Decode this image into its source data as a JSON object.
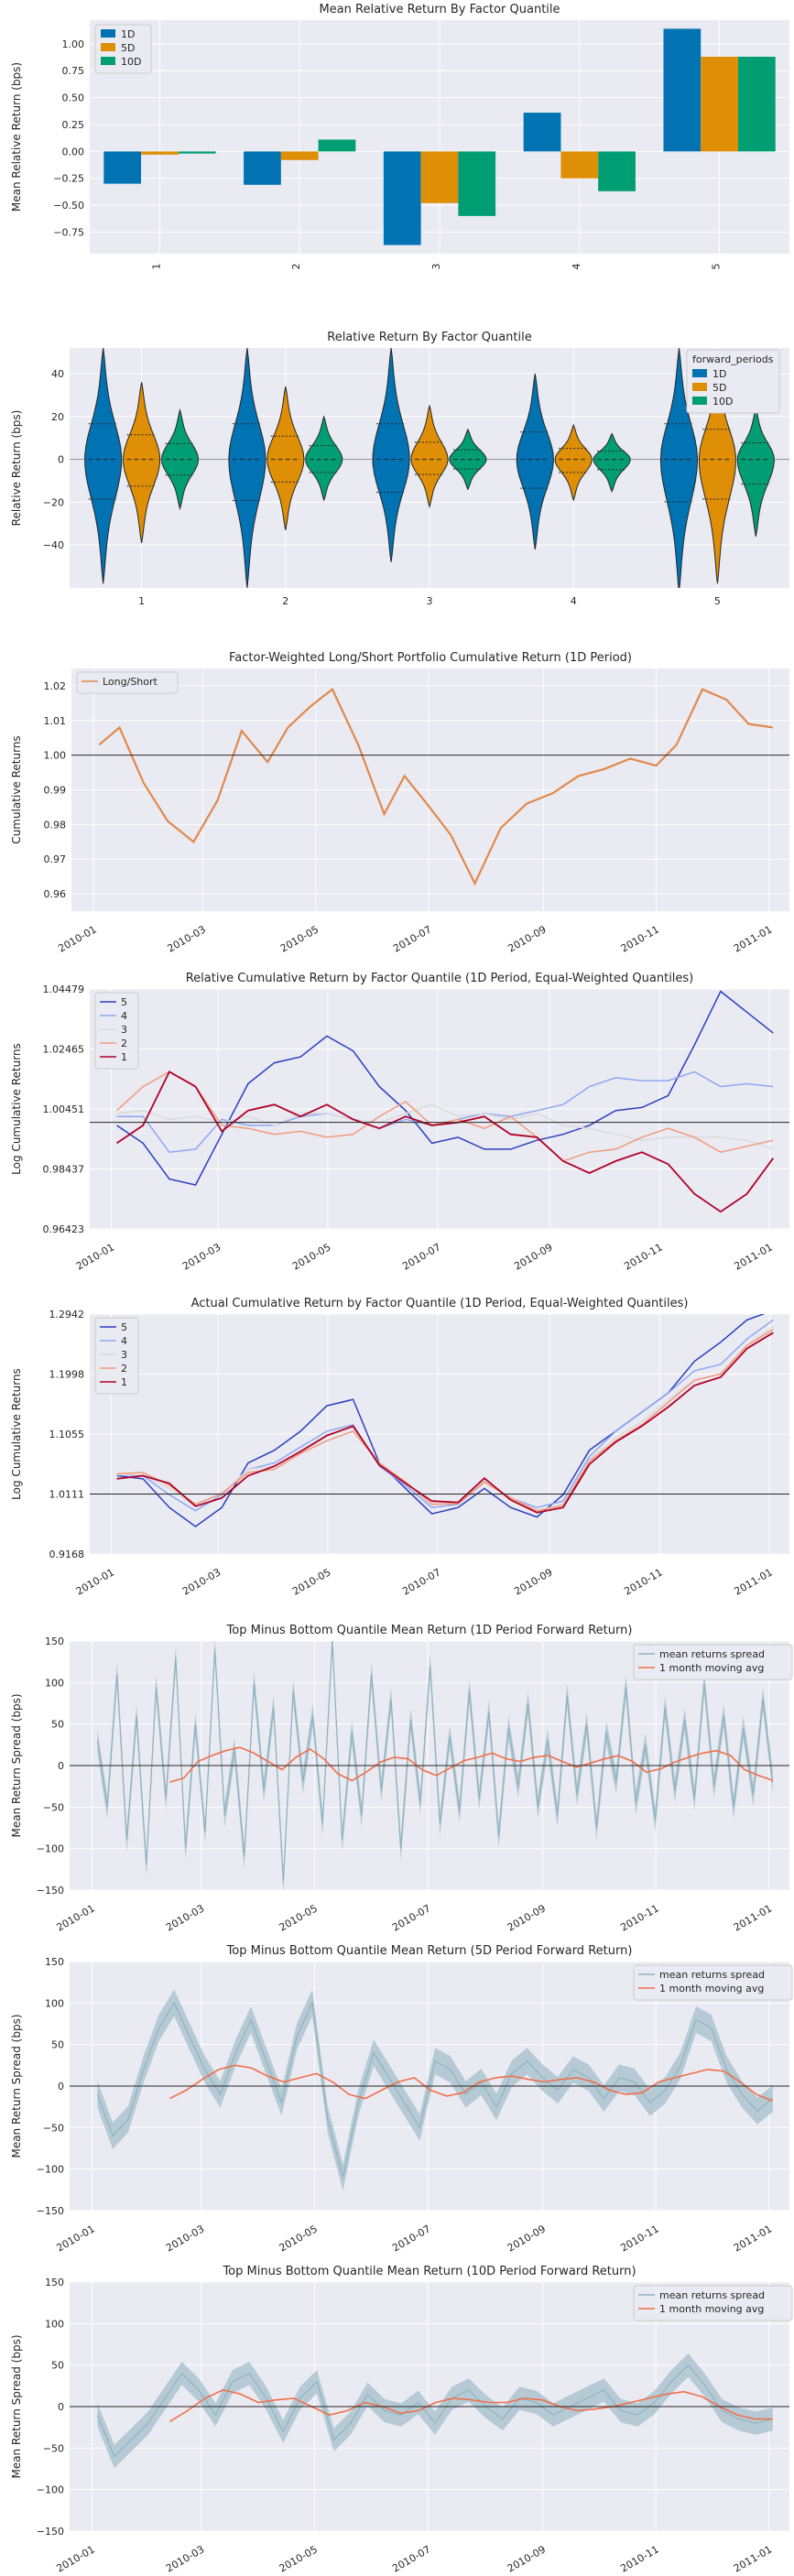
{
  "colors": {
    "bg": "#eaeaf2",
    "grid": "#ffffff",
    "blue": "#0173b2",
    "orange": "#de8f05",
    "green": "#029e73",
    "ls": "#e1894c",
    "q5": "#2a3fbf",
    "q4": "#8da7f2",
    "q3": "#d9d9dd",
    "q2": "#f19a7a",
    "q1": "#b00026",
    "spread": "#8eb1bd",
    "spreadFill": "#a3bfca",
    "avg": "#f06f49"
  },
  "months": [
    "2010-01",
    "2010-03",
    "2010-05",
    "2010-07",
    "2010-09",
    "2010-11",
    "2011-01"
  ],
  "chart_data": [
    {
      "id": "c1",
      "type": "bar",
      "title": "Mean Relative Return By Factor Quantile",
      "xlabel": "",
      "ylabel": "Mean Relative Return (bps)",
      "ylim": [
        -0.95,
        1.22
      ],
      "yticks": [
        "1.00",
        "0.75",
        "0.50",
        "0.25",
        "0.00",
        "−0.25",
        "−0.50",
        "−0.75"
      ],
      "categories": [
        "1",
        "2",
        "3",
        "4",
        "5"
      ],
      "legend": "top-left",
      "series": [
        {
          "name": "1D",
          "values": [
            -0.3,
            -0.31,
            -0.87,
            0.36,
            1.14
          ]
        },
        {
          "name": "5D",
          "values": [
            -0.03,
            -0.08,
            -0.48,
            -0.25,
            0.88
          ]
        },
        {
          "name": "10D",
          "values": [
            -0.02,
            0.11,
            -0.6,
            -0.37,
            0.88
          ]
        }
      ]
    },
    {
      "id": "c2",
      "type": "violin",
      "title": "Relative Return By Factor Quantile",
      "xlabel": "",
      "ylabel": "Relative Return (bps)",
      "ylim": [
        -60,
        52
      ],
      "yticks": [
        "40",
        "20",
        "0",
        "−20",
        "−40"
      ],
      "categories": [
        "1",
        "2",
        "3",
        "4",
        "5"
      ],
      "legend_title": "forward_periods",
      "legend": "top-right",
      "series": [
        {
          "name": "1D",
          "min": [
            -58,
            -60,
            -48,
            -42,
            -62
          ],
          "max": [
            52,
            52,
            52,
            40,
            52
          ]
        },
        {
          "name": "5D",
          "min": [
            -39,
            -33,
            -22,
            -19,
            -58
          ],
          "max": [
            36,
            34,
            25,
            16,
            44
          ]
        },
        {
          "name": "10D",
          "min": [
            -23,
            -19,
            -14,
            -15,
            -36
          ],
          "max": [
            23,
            20,
            14,
            12,
            24
          ]
        }
      ]
    },
    {
      "id": "c3",
      "type": "line",
      "title": "Factor-Weighted Long/Short Portfolio Cumulative Return (1D Period)",
      "ylabel": "Cumulative Returns",
      "ylim": [
        0.955,
        1.025
      ],
      "yticks": [
        "1.02",
        "1.01",
        "1.00",
        "0.99",
        "0.98",
        "0.97",
        "0.96"
      ],
      "xticks": [
        "2010-01",
        "2010-03",
        "2010-05",
        "2010-07",
        "2010-09",
        "2010-11",
        "2011-01"
      ],
      "legend": "top-left",
      "series": [
        {
          "name": "Long/Short",
          "x": [
            "2010-01-04",
            "2010-01-15",
            "2010-01-28",
            "2010-02-10",
            "2010-02-24",
            "2010-03-09",
            "2010-03-22",
            "2010-04-05",
            "2010-04-16",
            "2010-04-28",
            "2010-05-10",
            "2010-05-24",
            "2010-06-07",
            "2010-06-18",
            "2010-06-30",
            "2010-07-13",
            "2010-07-26",
            "2010-08-09",
            "2010-08-23",
            "2010-09-06",
            "2010-09-20",
            "2010-10-04",
            "2010-10-18",
            "2010-11-01",
            "2010-11-12",
            "2010-11-26",
            "2010-12-09",
            "2010-12-21",
            "2011-01-03"
          ],
          "values": [
            1.003,
            1.008,
            0.992,
            0.981,
            0.975,
            0.987,
            1.007,
            0.998,
            1.008,
            1.014,
            1.019,
            1.003,
            0.983,
            0.994,
            0.986,
            0.977,
            0.963,
            0.979,
            0.986,
            0.989,
            0.994,
            0.996,
            0.999,
            0.997,
            1.003,
            1.019,
            1.016,
            1.009,
            1.008
          ]
        }
      ]
    },
    {
      "id": "c4",
      "type": "line",
      "title": "Relative Cumulative Return by Factor Quantile (1D Period, Equal-Weighted Quantiles)",
      "ylabel": "Log Cumulative Returns",
      "ylim": [
        0.96423,
        1.04479
      ],
      "yticks": [
        "1.04479",
        "1.02465",
        "1.00451",
        "0.98437",
        "0.96423"
      ],
      "xticks": [
        "2010-01",
        "2010-03",
        "2010-05",
        "2010-07",
        "2010-09",
        "2010-11",
        "2011-01"
      ],
      "legend": "top-left",
      "series": [
        {
          "name": "5",
          "values": [
            0.999,
            0.993,
            0.981,
            0.979,
            0.996,
            1.013,
            1.02,
            1.022,
            1.029,
            1.024,
            1.012,
            1.004,
            0.993,
            0.995,
            0.991,
            0.991,
            0.994,
            0.996,
            0.999,
            1.004,
            1.005,
            1.009,
            1.026,
            1.044,
            1.037,
            1.03
          ]
        },
        {
          "name": "4",
          "values": [
            1.002,
            1.002,
            0.99,
            0.991,
            1.001,
            0.999,
            0.999,
            1.002,
            1.003,
            1.001,
            0.998,
            1.001,
            0.999,
            1.001,
            1.003,
            1.002,
            1.004,
            1.006,
            1.012,
            1.015,
            1.014,
            1.014,
            1.017,
            1.012,
            1.013,
            1.012
          ]
        },
        {
          "name": "3",
          "values": [
            1.003,
            1.004,
            1.001,
            1.002,
            1.0,
            1.002,
            0.999,
            1.003,
            1.003,
            1.001,
            1.0,
            1.003,
            1.006,
            1.002,
            1.003,
            1.001,
            1.003,
            0.999,
            0.998,
            0.996,
            0.994,
            0.995,
            0.995,
            0.995,
            0.994,
            0.991
          ]
        },
        {
          "name": "2",
          "values": [
            1.004,
            1.012,
            1.017,
            1.012,
            0.999,
            0.998,
            0.996,
            0.997,
            0.995,
            0.996,
            1.002,
            1.007,
            0.999,
            1.001,
            0.998,
            1.002,
            0.995,
            0.987,
            0.99,
            0.991,
            0.995,
            0.998,
            0.995,
            0.99,
            0.992,
            0.994
          ]
        },
        {
          "name": "1",
          "values": [
            0.993,
            0.999,
            1.017,
            1.012,
            0.997,
            1.004,
            1.006,
            1.002,
            1.006,
            1.001,
            0.998,
            1.002,
            0.999,
            1.0,
            1.002,
            0.996,
            0.995,
            0.987,
            0.983,
            0.987,
            0.99,
            0.986,
            0.976,
            0.97,
            0.976,
            0.988
          ]
        }
      ]
    },
    {
      "id": "c5",
      "type": "line",
      "title": "Actual Cumulative Return by Factor Quantile (1D Period, Equal-Weighted Quantiles)",
      "ylabel": "Log Cumulative Returns",
      "ylim": [
        0.9168,
        1.2942
      ],
      "yticks": [
        "1.2942",
        "1.1998",
        "1.1055",
        "1.0111",
        "0.9168"
      ],
      "xticks": [
        "2010-01",
        "2010-03",
        "2010-05",
        "2010-07",
        "2010-09",
        "2010-11",
        "2011-01"
      ],
      "legend": "top-left",
      "series": [
        {
          "name": "5",
          "values": [
            1.04,
            1.035,
            0.99,
            0.96,
            0.99,
            1.06,
            1.08,
            1.11,
            1.15,
            1.16,
            1.06,
            1.02,
            0.98,
            0.99,
            1.02,
            0.99,
            0.975,
            1.01,
            1.08,
            1.11,
            1.14,
            1.17,
            1.22,
            1.25,
            1.285,
            1.3
          ]
        },
        {
          "name": "4",
          "values": [
            1.041,
            1.04,
            1.01,
            0.985,
            1.01,
            1.05,
            1.06,
            1.085,
            1.11,
            1.12,
            1.055,
            1.025,
            0.99,
            0.995,
            1.03,
            1.005,
            0.99,
            1.0,
            1.07,
            1.11,
            1.14,
            1.17,
            1.205,
            1.215,
            1.255,
            1.285
          ]
        },
        {
          "name": "3",
          "values": [
            1.042,
            1.041,
            1.02,
            0.992,
            1.012,
            1.05,
            1.055,
            1.08,
            1.105,
            1.115,
            1.06,
            1.03,
            0.995,
            0.998,
            1.032,
            1.006,
            0.985,
            0.995,
            1.065,
            1.1,
            1.125,
            1.16,
            1.19,
            1.2,
            1.245,
            1.275
          ]
        },
        {
          "name": "2",
          "values": [
            1.043,
            1.045,
            1.025,
            0.995,
            1.012,
            1.045,
            1.05,
            1.075,
            1.095,
            1.11,
            1.06,
            1.03,
            0.995,
            0.996,
            1.03,
            1.005,
            0.985,
            0.993,
            1.063,
            1.095,
            1.12,
            1.155,
            1.19,
            1.2,
            1.245,
            1.27
          ]
        },
        {
          "name": "1",
          "values": [
            1.035,
            1.04,
            1.028,
            0.992,
            1.005,
            1.04,
            1.055,
            1.078,
            1.103,
            1.118,
            1.057,
            1.028,
            1.0,
            0.998,
            1.036,
            1.002,
            0.982,
            0.99,
            1.058,
            1.093,
            1.118,
            1.148,
            1.182,
            1.195,
            1.24,
            1.265
          ]
        }
      ]
    },
    {
      "id": "c6",
      "type": "line",
      "title": "Top Minus Bottom Quantile Mean Return (1D Period Forward Return)",
      "ylabel": "Mean Return Spread (bps)",
      "ylim": [
        -150,
        150
      ],
      "yticks": [
        "150",
        "100",
        "50",
        "0",
        "−50",
        "−100",
        "−150"
      ],
      "xticks": [
        "2010-01",
        "2010-03",
        "2010-05",
        "2010-07",
        "2010-09",
        "2010-11",
        "2011-01"
      ],
      "legend": "top-right",
      "series": [
        {
          "name": "mean returns spread",
          "values": [
            30,
            -50,
            110,
            -90,
            60,
            -120,
            95,
            -40,
            130,
            -100,
            50,
            -80,
            140,
            -60,
            20,
            -110,
            100,
            -30,
            70,
            -140,
            90,
            -20,
            60,
            -70,
            150,
            -90,
            40,
            -60,
            110,
            -30,
            80,
            -100,
            55,
            -45,
            120,
            -70,
            35,
            -55,
            90,
            -40,
            65,
            -85,
            45,
            -25,
            75,
            -50,
            30,
            -60,
            85,
            -35,
            50,
            -75,
            40,
            -20,
            95,
            -45,
            25,
            -65,
            70,
            -30,
            55,
            -40,
            100,
            -25,
            60,
            -50,
            45,
            -35,
            80,
            -20
          ]
        },
        {
          "name": "1 month moving avg",
          "values": [
            -20,
            -15,
            5,
            12,
            18,
            22,
            15,
            5,
            -5,
            10,
            20,
            8,
            -10,
            -18,
            -8,
            4,
            10,
            8,
            -5,
            -12,
            -3,
            6,
            10,
            15,
            8,
            5,
            10,
            12,
            5,
            -2,
            3,
            8,
            12,
            5,
            -8,
            -4,
            4,
            10,
            15,
            18,
            12,
            -5,
            -12,
            -18
          ]
        }
      ]
    },
    {
      "id": "c7",
      "type": "line",
      "title": "Top Minus Bottom Quantile Mean Return (5D Period Forward Return)",
      "ylabel": "Mean Return Spread (bps)",
      "ylim": [
        -150,
        150
      ],
      "yticks": [
        "150",
        "100",
        "50",
        "0",
        "−50",
        "−100",
        "−150"
      ],
      "xticks": [
        "2010-01",
        "2010-03",
        "2010-05",
        "2010-07",
        "2010-09",
        "2010-11",
        "2011-01"
      ],
      "legend": "top-right",
      "series": [
        {
          "name": "mean returns spread",
          "values": [
            -10,
            -60,
            -40,
            20,
            70,
            100,
            60,
            20,
            -10,
            40,
            80,
            30,
            -20,
            60,
            100,
            -40,
            -110,
            -20,
            40,
            10,
            -20,
            -50,
            30,
            20,
            -10,
            5,
            -25,
            15,
            30,
            10,
            -5,
            20,
            10,
            -15,
            10,
            5,
            -20,
            -5,
            25,
            80,
            70,
            20,
            -10,
            -30,
            -15
          ]
        },
        {
          "name": "1 month moving avg",
          "values": [
            -15,
            -5,
            8,
            20,
            25,
            22,
            12,
            5,
            10,
            15,
            5,
            -10,
            -15,
            -5,
            5,
            10,
            -5,
            -12,
            -8,
            5,
            10,
            12,
            8,
            5,
            8,
            10,
            5,
            -5,
            -10,
            -8,
            5,
            10,
            15,
            20,
            18,
            5,
            -10,
            -18
          ]
        }
      ]
    },
    {
      "id": "c8",
      "type": "line",
      "title": "Top Minus Bottom Quantile Mean Return (10D Period Forward Return)",
      "ylabel": "Mean Return Spread (bps)",
      "ylim": [
        -150,
        150
      ],
      "yticks": [
        "150",
        "100",
        "50",
        "0",
        "−50",
        "−100",
        "−150"
      ],
      "xticks": [
        "2010-01",
        "2010-03",
        "2010-05",
        "2010-07",
        "2010-09",
        "2010-11",
        "2011-01"
      ],
      "legend": "top-right",
      "series": [
        {
          "name": "mean returns spread",
          "values": [
            -10,
            -60,
            -40,
            -20,
            10,
            40,
            20,
            -10,
            30,
            40,
            10,
            -30,
            10,
            30,
            -40,
            -20,
            15,
            -5,
            -10,
            5,
            -20,
            10,
            20,
            0,
            -15,
            10,
            5,
            -10,
            0,
            10,
            20,
            -5,
            -10,
            5,
            30,
            50,
            25,
            -5,
            -15,
            -20,
            -15
          ]
        },
        {
          "name": "1 month moving avg",
          "values": [
            -18,
            -5,
            10,
            20,
            15,
            5,
            8,
            10,
            0,
            -10,
            -5,
            5,
            0,
            -8,
            -5,
            5,
            10,
            8,
            5,
            5,
            10,
            8,
            0,
            -5,
            -3,
            0,
            5,
            10,
            15,
            18,
            12,
            0,
            -10,
            -15,
            -15
          ]
        }
      ]
    }
  ]
}
